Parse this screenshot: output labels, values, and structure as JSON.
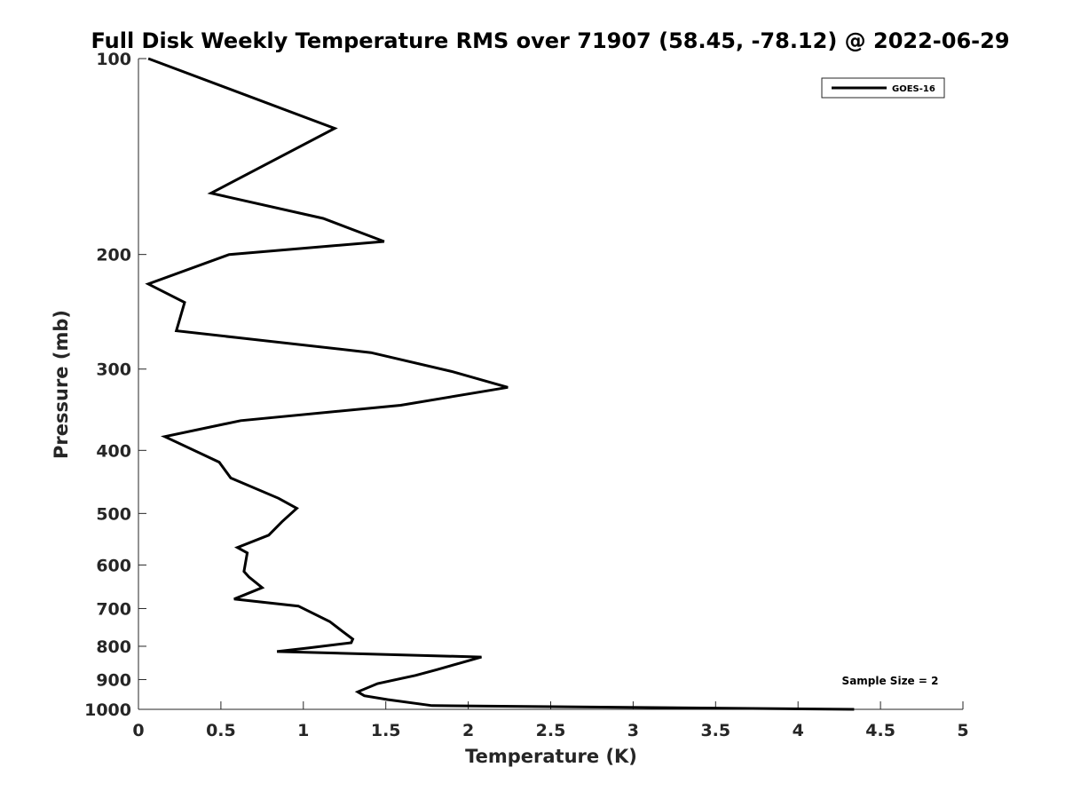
{
  "chart_data": {
    "type": "line",
    "title": "Full Disk Weekly Temperature RMS over 71907 (58.45, -78.12) @ 2022-06-29",
    "xlabel": "Temperature (K)",
    "ylabel": "Pressure (mb)",
    "xlim": [
      0,
      5
    ],
    "ylim": [
      1000,
      100
    ],
    "yscale": "log",
    "y_reversed": true,
    "grid": false,
    "legend_position": "top-right",
    "x_ticks": [
      "0",
      "0.5",
      "1",
      "1.5",
      "2",
      "2.5",
      "3",
      "3.5",
      "4",
      "4.5",
      "5"
    ],
    "x_tick_values": [
      0,
      0.5,
      1,
      1.5,
      2,
      2.5,
      3,
      3.5,
      4,
      4.5,
      5
    ],
    "y_ticks": [
      "100",
      "200",
      "300",
      "400",
      "500",
      "600",
      "700",
      "800",
      "900",
      "1000"
    ],
    "y_tick_values": [
      100,
      200,
      300,
      400,
      500,
      600,
      700,
      800,
      900,
      1000
    ],
    "series": [
      {
        "name": "GOES-16",
        "color": "#000000",
        "x": [
          0.06,
          1.19,
          0.44,
          1.12,
          1.49,
          0.55,
          0.06,
          0.28,
          0.23,
          1.41,
          1.91,
          2.24,
          1.59,
          0.62,
          0.16,
          0.49,
          0.56,
          0.85,
          0.96,
          0.87,
          0.79,
          0.6,
          0.66,
          0.64,
          0.67,
          0.75,
          0.58,
          0.97,
          1.16,
          1.24,
          1.3,
          1.29,
          1.03,
          0.84,
          2.08,
          1.95,
          1.81,
          1.68,
          1.45,
          1.33,
          1.37,
          1.51,
          1.78,
          4.34
        ],
        "y": [
          100,
          128,
          161,
          176,
          191,
          200,
          222,
          237,
          262,
          283,
          303,
          320,
          341,
          360,
          381,
          417,
          441,
          474,
          491,
          515,
          540,
          564,
          575,
          614,
          626,
          650,
          677,
          694,
          733,
          760,
          780,
          790,
          805,
          815,
          831,
          849,
          869,
          887,
          913,
          940,
          953,
          966,
          987,
          1000
        ]
      }
    ],
    "annotations": [
      "Sample Size = 2"
    ]
  }
}
